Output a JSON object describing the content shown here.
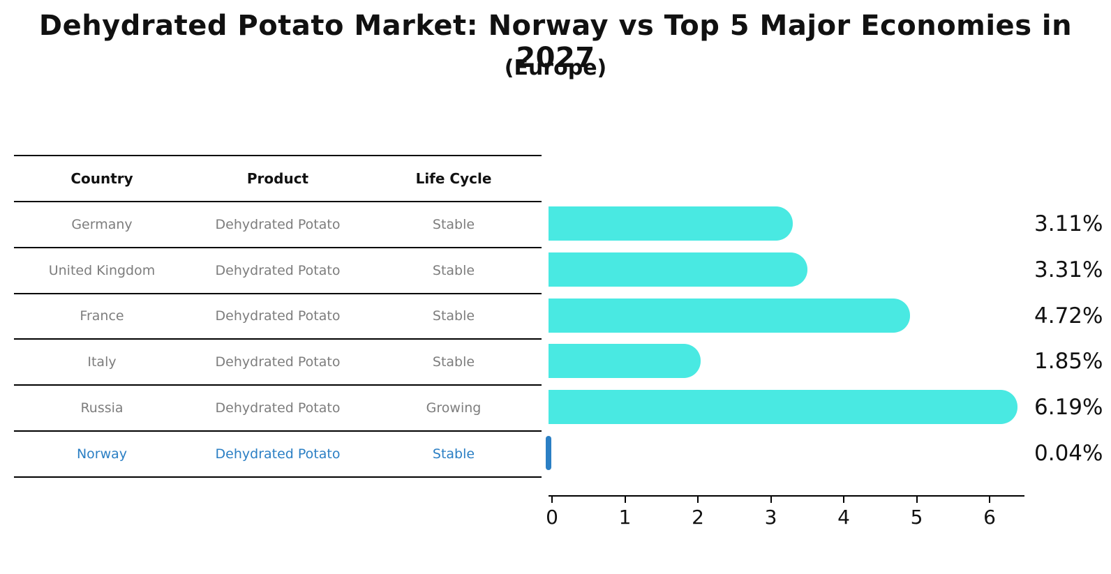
{
  "title": "Dehydrated Potato Market: Norway vs Top 5 Major Economies in 2027",
  "subtitle": "(Europe)",
  "table": {
    "headers": [
      "Country",
      "Product",
      "Life Cycle"
    ],
    "rows": [
      {
        "country": "Germany",
        "product": "Dehydrated Potato",
        "life_cycle": "Stable",
        "highlight": false
      },
      {
        "country": "United Kingdom",
        "product": "Dehydrated Potato",
        "life_cycle": "Stable",
        "highlight": false
      },
      {
        "country": "France",
        "product": "Dehydrated Potato",
        "life_cycle": "Stable",
        "highlight": false
      },
      {
        "country": "Italy",
        "product": "Dehydrated Potato",
        "life_cycle": "Stable",
        "highlight": false
      },
      {
        "country": "Russia",
        "product": "Dehydrated Potato",
        "life_cycle": "Growing",
        "highlight": false
      },
      {
        "country": "Norway",
        "product": "Dehydrated Potato",
        "life_cycle": "Stable",
        "highlight": true
      }
    ]
  },
  "chart_data": {
    "type": "bar",
    "orientation": "horizontal",
    "title": "Dehydrated Potato Market: Norway vs Top 5 Major Economies in 2027 (Europe)",
    "categories": [
      "Germany",
      "United Kingdom",
      "France",
      "Italy",
      "Russia",
      "Norway"
    ],
    "values": [
      3.11,
      3.31,
      4.72,
      1.85,
      6.19,
      0.04
    ],
    "value_labels": [
      "3.11%",
      "3.31%",
      "4.72%",
      "1.85%",
      "6.19%",
      "0.04%"
    ],
    "xlim": [
      0,
      6.5
    ],
    "xticks": [
      "0",
      "1",
      "2",
      "3",
      "4",
      "5",
      "6"
    ],
    "grid": false,
    "legend": false,
    "bar_color": "#49E9E2",
    "highlight_color": "#2B7FC4"
  },
  "colors": {
    "bar": "#49E9E2",
    "highlight": "#2B7FC4",
    "row_text": "#7d7d7d",
    "header_text": "#111111",
    "axis": "#000000"
  }
}
